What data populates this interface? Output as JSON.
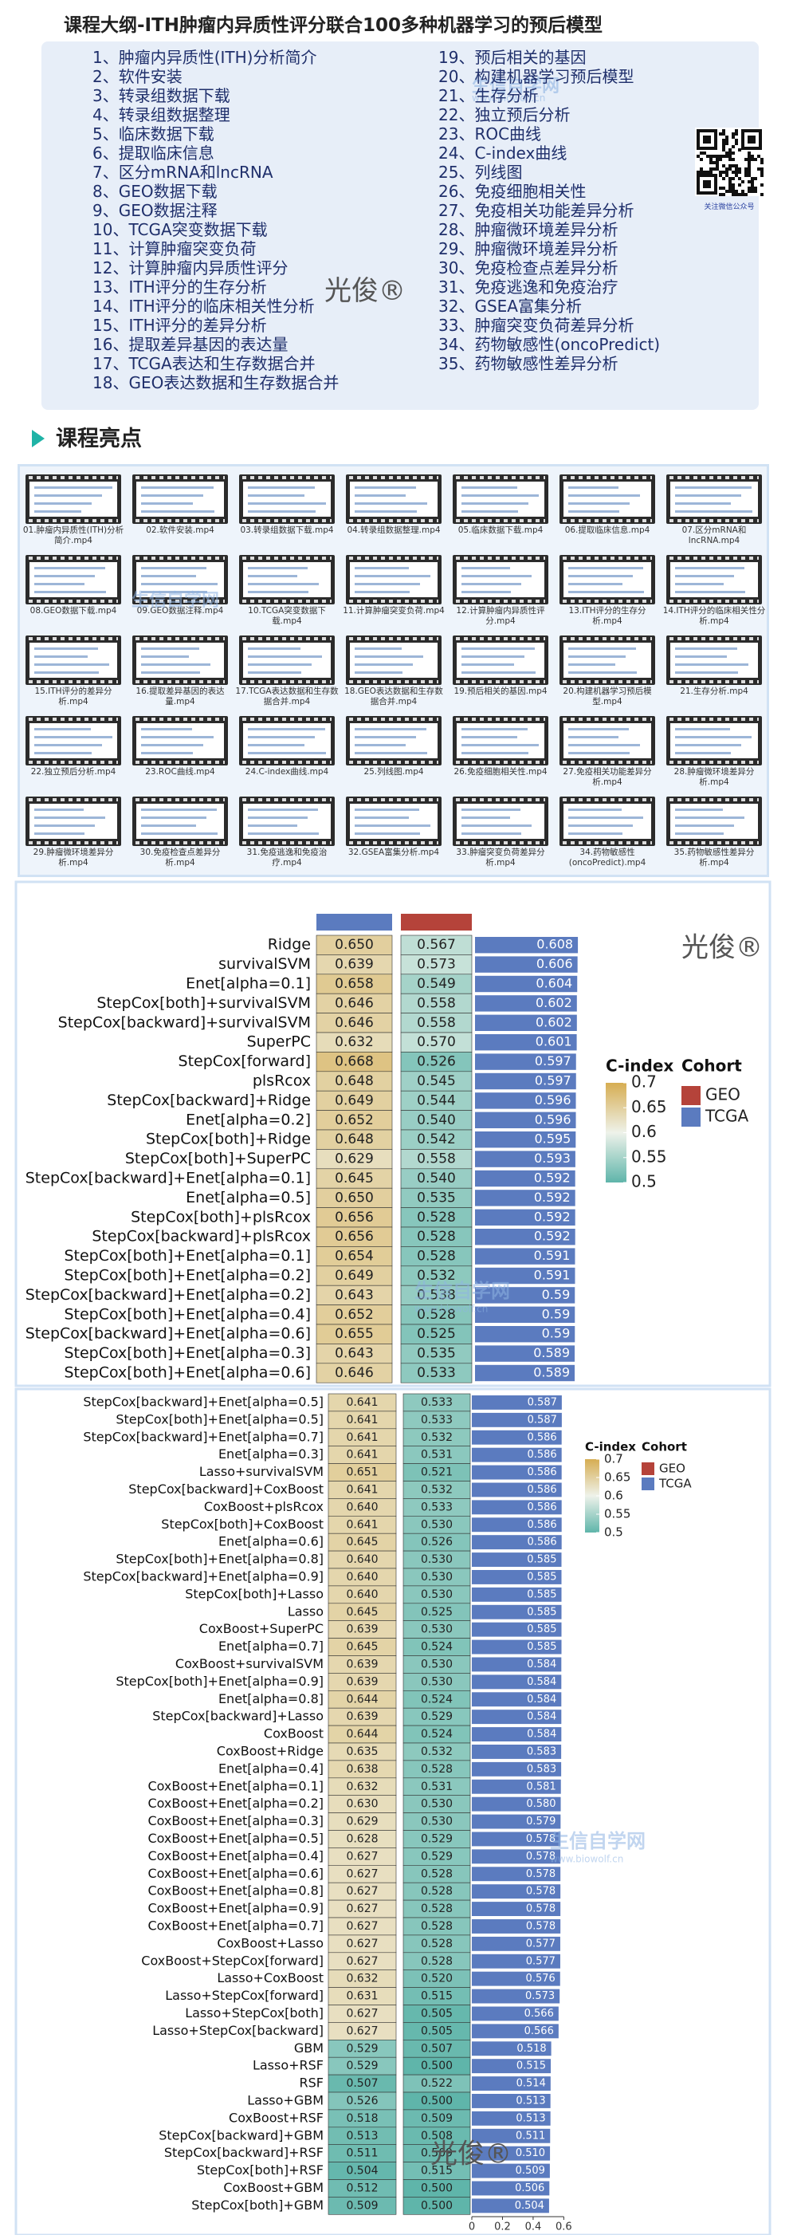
{
  "header": {
    "title": "课程大纲-ITH肿瘤内异质性评分联合100多种机器学习的预后模型"
  },
  "outline": {
    "items": [
      "1、肿瘤内异质性(ITH)分析简介",
      "2、软件安装",
      "3、转录组数据下载",
      "4、转录组数据整理",
      "5、临床数据下载",
      "6、提取临床信息",
      "7、区分mRNA和lncRNA",
      "8、GEO数据下载",
      "9、GEO数据注释",
      "10、TCGA突变数据下载",
      "11、计算肿瘤突变负荷",
      "12、计算肿瘤内异质性评分",
      "13、ITH评分的生存分析",
      "14、ITH评分的临床相关性分析",
      "15、ITH评分的差异分析",
      "16、提取差异基因的表达量",
      "17、TCGA表达和生存数据合并",
      "18、GEO表达数据和生存数据合并",
      "19、预后相关的基因",
      "20、构建机器学习预后模型",
      "21、生存分析",
      "22、独立预后分析",
      "23、ROC曲线",
      "24、C-index曲线",
      "25、列线图",
      "26、免疫细胞相关性",
      "27、免疫相关功能差异分析",
      "28、肿瘤微环境差异分析",
      "29、肿瘤微环境差异分析",
      "30、免疫检查点差异分析",
      "31、免疫逃逸和免疫治疗",
      "32、GSEA富集分析",
      "33、肿瘤突变负荷差异分析",
      "34、药物敏感性(oncoPredict)",
      "35、药物敏感性差异分析"
    ],
    "qr_caption": "关注微信公众号"
  },
  "watermark": {
    "brand": "光俊®",
    "site": "生信自学网",
    "url": "www.biowolf.cn"
  },
  "highlights": {
    "title": "课程亮点",
    "videos": [
      "01.肿瘤内异质性(ITH)分析简介.mp4",
      "02.软件安装.mp4",
      "03.转录组数据下载.mp4",
      "04.转录组数据整理.mp4",
      "05.临床数据下载.mp4",
      "06.提取临床信息.mp4",
      "07.区分mRNA和lncRNA.mp4",
      "08.GEO数据下载.mp4",
      "09.GEO数据注释.mp4",
      "10.TCGA突变数据下载.mp4",
      "11.计算肿瘤突变负荷.mp4",
      "12.计算肿瘤内异质性评分.mp4",
      "13.ITH评分的生存分析.mp4",
      "14.ITH评分的临床相关性分析.mp4",
      "15.ITH评分的差异分析.mp4",
      "16.提取差异基因的表达量.mp4",
      "17.TCGA表达数据和生存数据合并.mp4",
      "18.GEO表达数据和生存数据合并.mp4",
      "19.预后相关的基因.mp4",
      "20.构建机器学习预后模型.mp4",
      "21.生存分析.mp4",
      "22.独立预后分析.mp4",
      "23.ROC曲线.mp4",
      "24.C-index曲线.mp4",
      "25.列线图.mp4",
      "26.免疫细胞相关性.mp4",
      "27.免疫相关功能差异分析.mp4",
      "28.肿瘤微环境差异分析.mp4",
      "29.肿瘤微环境差异分析.mp4",
      "30.免疫检查点差异分析.mp4",
      "31.免疫逃逸和免疫治疗.mp4",
      "32.GSEA富集分析.mp4",
      "33.肿瘤突变负荷差异分析.mp4",
      "34.药物敏感性(oncoPredict).mp4",
      "35.药物敏感性差异分析.mp4"
    ]
  },
  "chart_data": [
    {
      "type": "heatmap",
      "rows": [
        "Ridge",
        "survivalSVM",
        "Enet[alpha=0.1]",
        "StepCox[both]+survivalSVM",
        "StepCox[backward]+survivalSVM",
        "SuperPC",
        "StepCox[forward]",
        "plsRcox",
        "StepCox[backward]+Ridge",
        "Enet[alpha=0.2]",
        "StepCox[both]+Ridge",
        "StepCox[both]+SuperPC",
        "StepCox[backward]+Enet[alpha=0.1]",
        "Enet[alpha=0.5]",
        "StepCox[both]+plsRcox",
        "StepCox[backward]+plsRcox",
        "StepCox[both]+Enet[alpha=0.1]",
        "StepCox[both]+Enet[alpha=0.2]",
        "StepCox[backward]+Enet[alpha=0.2]",
        "StepCox[both]+Enet[alpha=0.4]",
        "StepCox[backward]+Enet[alpha=0.6]",
        "StepCox[both]+Enet[alpha=0.3]",
        "StepCox[both]+Enet[alpha=0.6]"
      ],
      "series": [
        {
          "name": "TCGA",
          "color": "#5b7bbf",
          "values": [
            0.65,
            0.639,
            0.658,
            0.646,
            0.646,
            0.632,
            0.668,
            0.648,
            0.649,
            0.652,
            0.648,
            0.629,
            0.645,
            0.65,
            0.656,
            0.656,
            0.654,
            0.649,
            0.643,
            0.652,
            0.655,
            0.643,
            0.646
          ],
          "value_labels": [
            "0.650",
            "0.639",
            "0.658",
            "0.646",
            "0.646",
            "0.632",
            "0.668",
            "0.648",
            "0.649",
            "0.652",
            "0.648",
            "0.629",
            "0.645",
            "0.650",
            "0.656",
            "0.656",
            "0.654",
            "0.649",
            "0.643",
            "0.652",
            "0.655",
            "0.643",
            "0.646"
          ]
        },
        {
          "name": "GEO",
          "color": "#b5433a",
          "values": [
            0.567,
            0.573,
            0.549,
            0.558,
            0.558,
            0.57,
            0.526,
            0.545,
            0.544,
            0.54,
            0.542,
            0.558,
            0.54,
            0.535,
            0.528,
            0.528,
            0.528,
            0.532,
            0.538,
            0.528,
            0.525,
            0.535,
            0.533
          ],
          "value_labels": [
            "0.567",
            "0.573",
            "0.549",
            "0.558",
            "0.558",
            "0.570",
            "0.526",
            "0.545",
            "0.544",
            "0.540",
            "0.542",
            "0.558",
            "0.540",
            "0.535",
            "0.528",
            "0.528",
            "0.528",
            "0.532",
            "0.538",
            "0.528",
            "0.525",
            "0.535",
            "0.533"
          ]
        }
      ],
      "bar": {
        "color": "#5b7bbf",
        "values": [
          0.608,
          0.606,
          0.604,
          0.602,
          0.602,
          0.601,
          0.597,
          0.597,
          0.596,
          0.596,
          0.595,
          0.593,
          0.592,
          0.592,
          0.592,
          0.592,
          0.591,
          0.591,
          0.59,
          0.59,
          0.59,
          0.589,
          0.589
        ],
        "value_labels": [
          "0.608",
          "0.606",
          "0.604",
          "0.602",
          "0.602",
          "0.601",
          "0.597",
          "0.597",
          "0.596",
          "0.596",
          "0.595",
          "0.593",
          "0.592",
          "0.592",
          "0.592",
          "0.592",
          "0.591",
          "0.591",
          "0.59",
          "0.59",
          "0.59",
          "0.589",
          "0.589"
        ]
      },
      "xlim": [
        0,
        0.65
      ],
      "clim": [
        0.5,
        0.7
      ],
      "colors": [
        "#5fb5aa",
        "#eef2ea",
        "#d6ad52"
      ],
      "legend_title": "C-index",
      "cticks": [
        0.7,
        0.65,
        0.6,
        0.55,
        0.5
      ],
      "cohort_title": "Cohort"
    },
    {
      "type": "heatmap",
      "rows": [
        "StepCox[backward]+Enet[alpha=0.5]",
        "StepCox[both]+Enet[alpha=0.5]",
        "StepCox[backward]+Enet[alpha=0.7]",
        "Enet[alpha=0.3]",
        "Lasso+survivalSVM",
        "StepCox[backward]+CoxBoost",
        "CoxBoost+plsRcox",
        "StepCox[both]+CoxBoost",
        "Enet[alpha=0.6]",
        "StepCox[both]+Enet[alpha=0.8]",
        "StepCox[backward]+Enet[alpha=0.9]",
        "StepCox[both]+Lasso",
        "Lasso",
        "CoxBoost+SuperPC",
        "Enet[alpha=0.7]",
        "CoxBoost+survivalSVM",
        "StepCox[both]+Enet[alpha=0.9]",
        "Enet[alpha=0.8]",
        "StepCox[backward]+Lasso",
        "CoxBoost",
        "CoxBoost+Ridge",
        "Enet[alpha=0.4]",
        "CoxBoost+Enet[alpha=0.1]",
        "CoxBoost+Enet[alpha=0.2]",
        "CoxBoost+Enet[alpha=0.3]",
        "CoxBoost+Enet[alpha=0.5]",
        "CoxBoost+Enet[alpha=0.4]",
        "CoxBoost+Enet[alpha=0.6]",
        "CoxBoost+Enet[alpha=0.8]",
        "CoxBoost+Enet[alpha=0.9]",
        "CoxBoost+Enet[alpha=0.7]",
        "CoxBoost+Lasso",
        "CoxBoost+StepCox[forward]",
        "Lasso+CoxBoost",
        "Lasso+StepCox[forward]",
        "Lasso+StepCox[both]",
        "Lasso+StepCox[backward]",
        "GBM",
        "Lasso+RSF",
        "RSF",
        "Lasso+GBM",
        "CoxBoost+RSF",
        "StepCox[backward]+GBM",
        "StepCox[backward]+RSF",
        "StepCox[both]+RSF",
        "CoxBoost+GBM",
        "StepCox[both]+GBM"
      ],
      "series": [
        {
          "name": "TCGA",
          "color": "#5b7bbf",
          "values": [
            0.641,
            0.641,
            0.641,
            0.641,
            0.651,
            0.641,
            0.64,
            0.641,
            0.645,
            0.64,
            0.64,
            0.64,
            0.645,
            0.639,
            0.645,
            0.639,
            0.639,
            0.644,
            0.639,
            0.644,
            0.635,
            0.638,
            0.632,
            0.63,
            0.629,
            0.628,
            0.627,
            0.627,
            0.627,
            0.627,
            0.627,
            0.627,
            0.627,
            0.632,
            0.631,
            0.627,
            0.627,
            0.529,
            0.529,
            0.507,
            0.526,
            0.518,
            0.513,
            0.511,
            0.504,
            0.512,
            0.509
          ],
          "value_labels": [
            "0.641",
            "0.641",
            "0.641",
            "0.641",
            "0.651",
            "0.641",
            "0.640",
            "0.641",
            "0.645",
            "0.640",
            "0.640",
            "0.640",
            "0.645",
            "0.639",
            "0.645",
            "0.639",
            "0.639",
            "0.644",
            "0.639",
            "0.644",
            "0.635",
            "0.638",
            "0.632",
            "0.630",
            "0.629",
            "0.628",
            "0.627",
            "0.627",
            "0.627",
            "0.627",
            "0.627",
            "0.627",
            "0.627",
            "0.632",
            "0.631",
            "0.627",
            "0.627",
            "0.529",
            "0.529",
            "0.507",
            "0.526",
            "0.518",
            "0.513",
            "0.511",
            "0.504",
            "0.512",
            "0.509"
          ]
        },
        {
          "name": "GEO",
          "color": "#b5433a",
          "values": [
            0.533,
            0.533,
            0.532,
            0.531,
            0.521,
            0.532,
            0.533,
            0.53,
            0.526,
            0.53,
            0.53,
            0.53,
            0.525,
            0.53,
            0.524,
            0.53,
            0.53,
            0.524,
            0.529,
            0.524,
            0.532,
            0.528,
            0.531,
            0.53,
            0.53,
            0.529,
            0.529,
            0.528,
            0.528,
            0.528,
            0.528,
            0.528,
            0.528,
            0.52,
            0.515,
            0.505,
            0.505,
            0.507,
            0.5,
            0.522,
            0.5,
            0.509,
            0.508,
            0.509,
            0.515,
            0.5,
            0.5
          ],
          "value_labels": [
            "0.533",
            "0.533",
            "0.532",
            "0.531",
            "0.521",
            "0.532",
            "0.533",
            "0.530",
            "0.526",
            "0.530",
            "0.530",
            "0.530",
            "0.525",
            "0.530",
            "0.524",
            "0.530",
            "0.530",
            "0.524",
            "0.529",
            "0.524",
            "0.532",
            "0.528",
            "0.531",
            "0.530",
            "0.530",
            "0.529",
            "0.529",
            "0.528",
            "0.528",
            "0.528",
            "0.528",
            "0.528",
            "0.528",
            "0.520",
            "0.515",
            "0.505",
            "0.505",
            "0.507",
            "0.500",
            "0.522",
            "0.500",
            "0.509",
            "0.508",
            "0.509",
            "0.515",
            "0.500",
            "0.500"
          ]
        }
      ],
      "bar": {
        "color": "#5b7bbf",
        "values": [
          0.587,
          0.587,
          0.586,
          0.586,
          0.586,
          0.586,
          0.586,
          0.586,
          0.586,
          0.585,
          0.585,
          0.585,
          0.585,
          0.585,
          0.585,
          0.584,
          0.584,
          0.584,
          0.584,
          0.584,
          0.583,
          0.583,
          0.581,
          0.58,
          0.579,
          0.578,
          0.578,
          0.578,
          0.578,
          0.578,
          0.578,
          0.577,
          0.577,
          0.576,
          0.573,
          0.566,
          0.566,
          0.518,
          0.515,
          0.514,
          0.513,
          0.513,
          0.511,
          0.51,
          0.509,
          0.506,
          0.504
        ],
        "value_labels": [
          "0.587",
          "0.587",
          "0.586",
          "0.586",
          "0.586",
          "0.586",
          "0.586",
          "0.586",
          "0.586",
          "0.585",
          "0.585",
          "0.585",
          "0.585",
          "0.585",
          "0.585",
          "0.584",
          "0.584",
          "0.584",
          "0.584",
          "0.584",
          "0.583",
          "0.583",
          "0.581",
          "0.580",
          "0.579",
          "0.578",
          "0.578",
          "0.578",
          "0.578",
          "0.578",
          "0.578",
          "0.577",
          "0.577",
          "0.576",
          "0.573",
          "0.566",
          "0.566",
          "0.518",
          "0.515",
          "0.514",
          "0.513",
          "0.513",
          "0.511",
          "0.510",
          "0.509",
          "0.506",
          "0.504"
        ]
      },
      "xlim": [
        0,
        0.65
      ],
      "xticks": [
        0,
        0.2,
        0.4,
        0.6
      ],
      "clim": [
        0.5,
        0.7
      ],
      "colors": [
        "#5fb5aa",
        "#eef2ea",
        "#d6ad52"
      ],
      "legend_title": "C-index",
      "cticks": [
        0.7,
        0.65,
        0.6,
        0.55,
        0.5
      ],
      "cohort_title": "Cohort"
    }
  ]
}
